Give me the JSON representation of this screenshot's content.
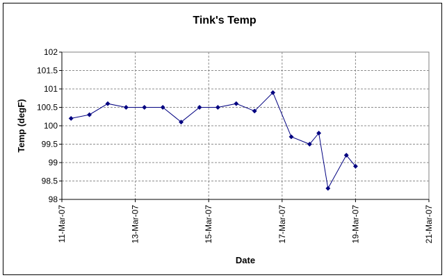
{
  "chart_data": {
    "type": "line",
    "title": "Tink's Temp",
    "xlabel": "Date",
    "ylabel": "Temp (degF)",
    "x_ticks": [
      "11-Mar-07",
      "13-Mar-07",
      "15-Mar-07",
      "17-Mar-07",
      "19-Mar-07",
      "21-Mar-07"
    ],
    "y_ticks": [
      "98",
      "98.5",
      "99",
      "99.5",
      "100",
      "100.5",
      "101",
      "101.5",
      "102"
    ],
    "xlim": [
      "2007-03-11",
      "2007-03-21"
    ],
    "ylim": [
      98,
      102
    ],
    "grid": true,
    "marker_color": "#000080",
    "line_color": "#000080",
    "series": [
      {
        "points": [
          {
            "x": "2007-03-11 06:00",
            "y": 100.2
          },
          {
            "x": "2007-03-11 18:00",
            "y": 100.3
          },
          {
            "x": "2007-03-12 06:00",
            "y": 100.6
          },
          {
            "x": "2007-03-12 18:00",
            "y": 100.5
          },
          {
            "x": "2007-03-13 06:00",
            "y": 100.5
          },
          {
            "x": "2007-03-13 18:00",
            "y": 100.5
          },
          {
            "x": "2007-03-14 06:00",
            "y": 100.1
          },
          {
            "x": "2007-03-14 18:00",
            "y": 100.5
          },
          {
            "x": "2007-03-15 06:00",
            "y": 100.5
          },
          {
            "x": "2007-03-15 18:00",
            "y": 100.6
          },
          {
            "x": "2007-03-16 06:00",
            "y": 100.4
          },
          {
            "x": "2007-03-16 18:00",
            "y": 100.9
          },
          {
            "x": "2007-03-17 06:00",
            "y": 99.7
          },
          {
            "x": "2007-03-17 18:00",
            "y": 99.5
          },
          {
            "x": "2007-03-18 00:00",
            "y": 99.8
          },
          {
            "x": "2007-03-18 06:00",
            "y": 98.3
          },
          {
            "x": "2007-03-18 18:00",
            "y": 99.2
          },
          {
            "x": "2007-03-19 00:00",
            "y": 98.9
          }
        ]
      }
    ]
  }
}
